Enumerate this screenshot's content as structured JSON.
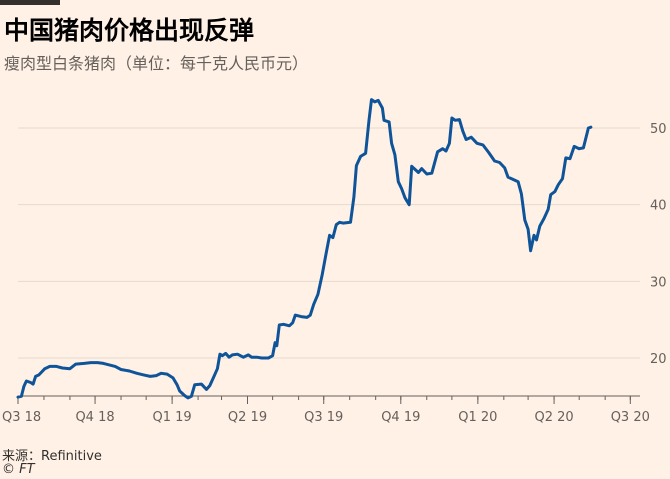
{
  "header": {
    "title": "中国猪肉价格出现反弹",
    "subtitle": "瘦肉型白条猪肉（单位：每千克人民币元）"
  },
  "footer": {
    "source": "来源：Refinitive",
    "copyright": "© FT"
  },
  "colors": {
    "background": "#fff1e5",
    "line": "#0f5499",
    "grid": "#e6d9ce",
    "axis": "#66605c"
  },
  "chart_data": {
    "type": "line",
    "title": "中国猪肉价格出现反弹",
    "subtitle": "瘦肉型白条猪肉（单位：每千克人民币元）",
    "xlabel": "",
    "ylabel": "",
    "y_axis_position": "right",
    "grid": "horizontal",
    "legend": "none",
    "x_range": [
      "2018-07-01",
      "2020-07-09"
    ],
    "ylim": [
      15,
      55
    ],
    "y_ticks": [
      20,
      30,
      40,
      50
    ],
    "x_ticks": [
      {
        "date": "2018-07-01",
        "label": "Q3 18"
      },
      {
        "date": "2018-10-01",
        "label": "Q4 18"
      },
      {
        "date": "2019-01-01",
        "label": "Q1 19"
      },
      {
        "date": "2019-04-01",
        "label": "Q2 19"
      },
      {
        "date": "2019-07-01",
        "label": "Q3 19"
      },
      {
        "date": "2019-10-01",
        "label": "Q4 19"
      },
      {
        "date": "2020-01-01",
        "label": "Q1 20"
      },
      {
        "date": "2020-04-01",
        "label": "Q2 20"
      },
      {
        "date": "2020-07-01",
        "label": "Q3 20"
      }
    ],
    "series": [
      {
        "values": [
          [
            "2018-07-01",
            14.9
          ],
          [
            "2018-07-05",
            15.0
          ],
          [
            "2018-07-08",
            16.3
          ],
          [
            "2018-07-11",
            17.0
          ],
          [
            "2018-07-16",
            16.8
          ],
          [
            "2018-07-19",
            16.6
          ],
          [
            "2018-07-22",
            17.6
          ],
          [
            "2018-07-26",
            17.8
          ],
          [
            "2018-08-02",
            18.6
          ],
          [
            "2018-08-08",
            18.9
          ],
          [
            "2018-08-16",
            18.9
          ],
          [
            "2018-08-23",
            18.7
          ],
          [
            "2018-09-01",
            18.6
          ],
          [
            "2018-09-08",
            19.2
          ],
          [
            "2018-09-18",
            19.3
          ],
          [
            "2018-09-26",
            19.4
          ],
          [
            "2018-10-04",
            19.4
          ],
          [
            "2018-10-11",
            19.3
          ],
          [
            "2018-10-18",
            19.1
          ],
          [
            "2018-10-25",
            18.9
          ],
          [
            "2018-11-01",
            18.5
          ],
          [
            "2018-11-11",
            18.3
          ],
          [
            "2018-11-20",
            18.0
          ],
          [
            "2018-11-28",
            17.8
          ],
          [
            "2018-12-06",
            17.6
          ],
          [
            "2018-12-13",
            17.7
          ],
          [
            "2018-12-19",
            18.0
          ],
          [
            "2018-12-26",
            17.9
          ],
          [
            "2019-01-02",
            17.4
          ],
          [
            "2019-01-07",
            16.5
          ],
          [
            "2019-01-10",
            15.7
          ],
          [
            "2019-01-16",
            15.1
          ],
          [
            "2019-01-20",
            14.8
          ],
          [
            "2019-01-24",
            15.0
          ],
          [
            "2019-01-28",
            16.5
          ],
          [
            "2019-02-05",
            16.6
          ],
          [
            "2019-02-11",
            15.9
          ],
          [
            "2019-02-15",
            16.4
          ],
          [
            "2019-02-20",
            17.6
          ],
          [
            "2019-02-24",
            18.6
          ],
          [
            "2019-02-27",
            20.5
          ],
          [
            "2019-03-02",
            20.3
          ],
          [
            "2019-03-06",
            20.6
          ],
          [
            "2019-03-10",
            20.1
          ],
          [
            "2019-03-14",
            20.4
          ],
          [
            "2019-03-20",
            20.5
          ],
          [
            "2019-03-27",
            20.1
          ],
          [
            "2019-04-02",
            20.4
          ],
          [
            "2019-04-06",
            20.1
          ],
          [
            "2019-04-12",
            20.1
          ],
          [
            "2019-04-18",
            20.0
          ],
          [
            "2019-04-26",
            20.0
          ],
          [
            "2019-05-01",
            20.3
          ],
          [
            "2019-05-04",
            22.0
          ],
          [
            "2019-05-06",
            21.6
          ],
          [
            "2019-05-09",
            24.3
          ],
          [
            "2019-05-14",
            24.4
          ],
          [
            "2019-05-21",
            24.2
          ],
          [
            "2019-05-25",
            24.6
          ],
          [
            "2019-05-28",
            25.6
          ],
          [
            "2019-06-04",
            25.4
          ],
          [
            "2019-06-11",
            25.3
          ],
          [
            "2019-06-15",
            25.6
          ],
          [
            "2019-06-19",
            27.0
          ],
          [
            "2019-06-24",
            28.3
          ],
          [
            "2019-06-29",
            30.8
          ],
          [
            "2019-07-04",
            33.7
          ],
          [
            "2019-07-08",
            36.0
          ],
          [
            "2019-07-12",
            35.7
          ],
          [
            "2019-07-16",
            37.4
          ],
          [
            "2019-07-20",
            37.7
          ],
          [
            "2019-07-24",
            37.6
          ],
          [
            "2019-08-02",
            37.7
          ],
          [
            "2019-08-06",
            41.0
          ],
          [
            "2019-08-09",
            45.1
          ],
          [
            "2019-08-14",
            46.3
          ],
          [
            "2019-08-20",
            46.7
          ],
          [
            "2019-08-24",
            51.0
          ],
          [
            "2019-08-27",
            53.7
          ],
          [
            "2019-08-31",
            53.4
          ],
          [
            "2019-09-04",
            53.6
          ],
          [
            "2019-09-09",
            52.6
          ],
          [
            "2019-09-11",
            51.0
          ],
          [
            "2019-09-17",
            50.8
          ],
          [
            "2019-09-20",
            48.0
          ],
          [
            "2019-09-24",
            46.5
          ],
          [
            "2019-09-28",
            43.0
          ],
          [
            "2019-10-02",
            42.1
          ],
          [
            "2019-10-06",
            40.9
          ],
          [
            "2019-10-11",
            40.0
          ],
          [
            "2019-10-14",
            45.0
          ],
          [
            "2019-10-18",
            44.6
          ],
          [
            "2019-10-22",
            44.2
          ],
          [
            "2019-10-26",
            44.7
          ],
          [
            "2019-11-01",
            44.0
          ],
          [
            "2019-11-07",
            44.1
          ],
          [
            "2019-11-14",
            46.9
          ],
          [
            "2019-11-20",
            47.3
          ],
          [
            "2019-11-24",
            47.0
          ],
          [
            "2019-11-28",
            48.0
          ],
          [
            "2019-12-01",
            51.3
          ],
          [
            "2019-12-05",
            51.0
          ],
          [
            "2019-12-10",
            51.1
          ],
          [
            "2019-12-14",
            49.6
          ],
          [
            "2019-12-18",
            48.5
          ],
          [
            "2019-12-24",
            48.8
          ],
          [
            "2019-12-31",
            48.0
          ],
          [
            "2020-01-07",
            47.8
          ],
          [
            "2020-01-14",
            46.8
          ],
          [
            "2020-01-21",
            45.7
          ],
          [
            "2020-01-27",
            45.5
          ],
          [
            "2020-02-02",
            44.8
          ],
          [
            "2020-02-06",
            43.6
          ],
          [
            "2020-02-12",
            43.3
          ],
          [
            "2020-02-18",
            43.0
          ],
          [
            "2020-02-22",
            41.4
          ],
          [
            "2020-02-26",
            38.0
          ],
          [
            "2020-03-01",
            36.8
          ],
          [
            "2020-03-04",
            34.0
          ],
          [
            "2020-03-08",
            36.0
          ],
          [
            "2020-03-11",
            35.4
          ],
          [
            "2020-03-15",
            37.2
          ],
          [
            "2020-03-20",
            38.2
          ],
          [
            "2020-03-25",
            39.4
          ],
          [
            "2020-03-28",
            41.3
          ],
          [
            "2020-04-02",
            41.7
          ],
          [
            "2020-04-06",
            42.6
          ],
          [
            "2020-04-11",
            43.4
          ],
          [
            "2020-04-15",
            46.1
          ],
          [
            "2020-04-20",
            46.0
          ],
          [
            "2020-04-25",
            47.6
          ],
          [
            "2020-05-01",
            47.3
          ],
          [
            "2020-05-06",
            47.4
          ],
          [
            "2020-05-12",
            50.0
          ],
          [
            "2020-05-15",
            50.1
          ]
        ]
      }
    ]
  }
}
